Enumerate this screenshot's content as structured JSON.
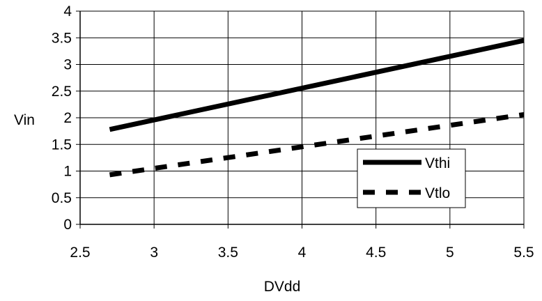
{
  "chart_data": {
    "type": "line",
    "xlabel": "DVdd",
    "ylabel": "Vin",
    "xlim": [
      2.5,
      5.5
    ],
    "ylim": [
      0,
      4
    ],
    "xticks": [
      2.5,
      3,
      3.5,
      4,
      4.5,
      5,
      5.5
    ],
    "xtick_labels": [
      "2.5",
      "3",
      "3.5",
      "4",
      "4.5",
      "5",
      "5.5"
    ],
    "yticks": [
      0,
      0.5,
      1,
      1.5,
      2,
      2.5,
      3,
      3.5,
      4
    ],
    "ytick_labels": [
      "0",
      "0.5",
      "1",
      "1.5",
      "2",
      "2.5",
      "3",
      "3.5",
      "4"
    ],
    "grid": true,
    "legend_position": "bottom-right",
    "series": [
      {
        "name": "Vthi",
        "style": "solid",
        "x": [
          2.7,
          5.5
        ],
        "y": [
          1.78,
          3.45
        ]
      },
      {
        "name": "Vtlo",
        "style": "dashed",
        "x": [
          2.7,
          5.5
        ],
        "y": [
          0.93,
          2.06
        ]
      }
    ]
  }
}
